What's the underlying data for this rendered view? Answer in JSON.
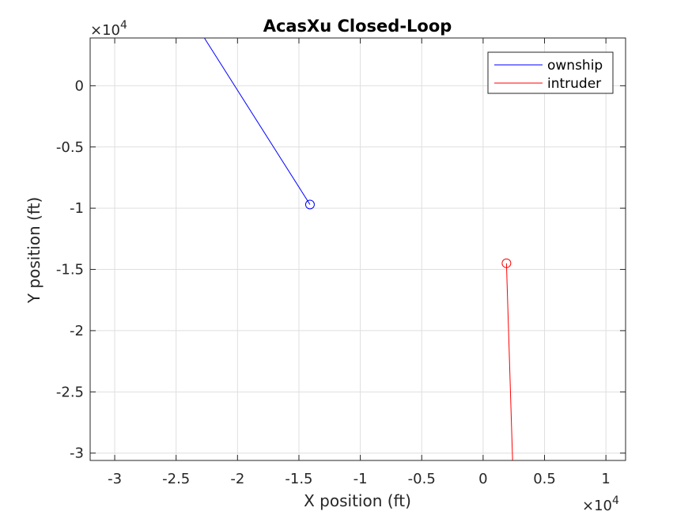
{
  "chart_data": {
    "type": "line",
    "title": "AcasXu Closed-Loop",
    "xlabel": "X position (ft)",
    "ylabel": "Y position (ft)",
    "x_multiplier": "×10",
    "x_multiplier_exp": "4",
    "y_multiplier": "×10",
    "y_multiplier_exp": "4",
    "xlim": [
      -32000,
      11600
    ],
    "ylim": [
      -30600,
      3900
    ],
    "grid": true,
    "legend_position": "top-right",
    "x_ticks": [
      {
        "value": -30000,
        "label": "-3"
      },
      {
        "value": -25000,
        "label": "-2.5"
      },
      {
        "value": -20000,
        "label": "-2"
      },
      {
        "value": -15000,
        "label": "-1.5"
      },
      {
        "value": -10000,
        "label": "-1"
      },
      {
        "value": -5000,
        "label": "-0.5"
      },
      {
        "value": 0,
        "label": "0"
      },
      {
        "value": 5000,
        "label": "0.5"
      },
      {
        "value": 10000,
        "label": "1"
      }
    ],
    "y_ticks": [
      {
        "value": 0,
        "label": "0"
      },
      {
        "value": -5000,
        "label": "-0.5"
      },
      {
        "value": -10000,
        "label": "-1"
      },
      {
        "value": -15000,
        "label": "-1.5"
      },
      {
        "value": -20000,
        "label": "-2"
      },
      {
        "value": -25000,
        "label": "-2.5"
      },
      {
        "value": -30000,
        "label": "-3"
      }
    ],
    "series": [
      {
        "name": "ownship",
        "color": "#0000ff",
        "x": [
          -22700,
          -14100
        ],
        "y": [
          3900,
          -9700
        ],
        "marker_x": -14100,
        "marker_y": -9700
      },
      {
        "name": "intruder",
        "color": "#ff0000",
        "x": [
          1900,
          2400
        ],
        "y": [
          -14500,
          -30600
        ],
        "marker_x": 1900,
        "marker_y": -14500
      }
    ]
  }
}
